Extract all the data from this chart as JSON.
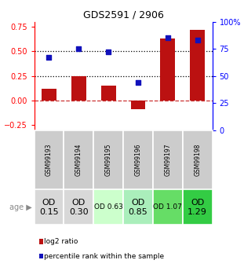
{
  "title": "GDS2591 / 2906",
  "samples": [
    "GSM99193",
    "GSM99194",
    "GSM99195",
    "GSM99196",
    "GSM99197",
    "GSM99198"
  ],
  "log2_ratios": [
    0.12,
    0.25,
    0.15,
    -0.09,
    0.63,
    0.72
  ],
  "percentile_ranks": [
    67,
    75,
    72,
    44,
    85,
    83
  ],
  "bar_color": "#bb1111",
  "dot_color": "#1111bb",
  "ylim_left": [
    -0.3,
    0.8
  ],
  "yticks_left": [
    -0.25,
    0.0,
    0.25,
    0.5,
    0.75
  ],
  "ylim_right": [
    0,
    100
  ],
  "yticks_right": [
    0,
    25,
    50,
    75,
    100
  ],
  "hline_y": [
    0.25,
    0.5
  ],
  "zero_line_color": "#cc3333",
  "age_labels": [
    "OD\n0.15",
    "OD\n0.30",
    "OD 0.63",
    "OD\n0.85",
    "OD 1.07",
    "OD\n1.29"
  ],
  "age_label_sizes": [
    8,
    8,
    6.5,
    8,
    6.5,
    8
  ],
  "age_bg_colors": [
    "#d8d8d8",
    "#d8d8d8",
    "#ccffcc",
    "#aaeebb",
    "#66dd66",
    "#33cc44"
  ],
  "gsm_bg_color": "#cccccc",
  "legend_items": [
    "log2 ratio",
    "percentile rank within the sample"
  ],
  "legend_colors": [
    "#bb1111",
    "#1111bb"
  ]
}
